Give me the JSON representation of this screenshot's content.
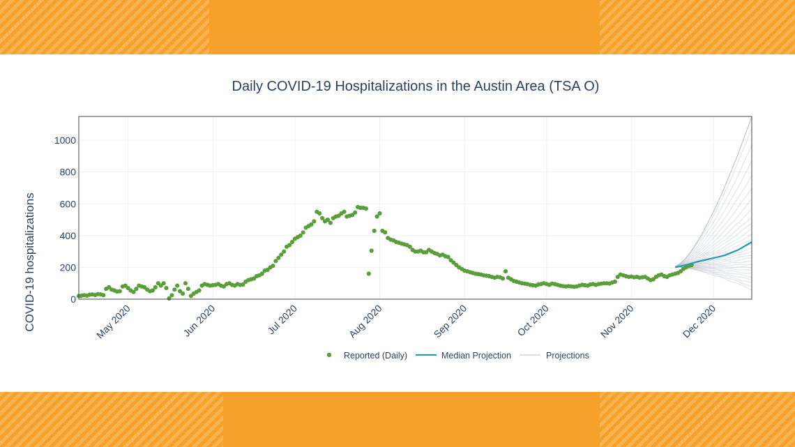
{
  "colors": {
    "band_orange": "#f6a12c",
    "band_orange_light": "#f8b24a",
    "reported": "#5a9e3c",
    "median": "#1a9eb0",
    "projection": "#a9adb6",
    "text": "#2a3f5f",
    "grid": "#eef0f3"
  },
  "chart_data": {
    "type": "scatter",
    "title": "Daily COVID-19 Hospitalizations in the Austin Area (TSA O)",
    "xlabel": "",
    "ylabel": "COVID-19 hospitalizations",
    "xlim": [
      "2020-04-13",
      "2020-12-15"
    ],
    "ylim": [
      0,
      1150
    ],
    "y_ticks": [
      0,
      200,
      400,
      600,
      800,
      1000
    ],
    "x_ticks": [
      {
        "date": "2020-05-01",
        "label": "May 2020"
      },
      {
        "date": "2020-06-01",
        "label": "Jun 2020"
      },
      {
        "date": "2020-07-01",
        "label": "Jul 2020"
      },
      {
        "date": "2020-08-01",
        "label": "Aug 2020"
      },
      {
        "date": "2020-09-01",
        "label": "Sep 2020"
      },
      {
        "date": "2020-10-01",
        "label": "Oct 2020"
      },
      {
        "date": "2020-11-01",
        "label": "Nov 2020"
      },
      {
        "date": "2020-12-01",
        "label": "Dec 2020"
      }
    ],
    "grid": true,
    "legend_position": "bottom",
    "series": [
      {
        "name": "Reported (Daily)",
        "kind": "markers",
        "start_date": "2020-04-13",
        "values": [
          20,
          22,
          25,
          22,
          28,
          30,
          26,
          32,
          30,
          25,
          65,
          75,
          60,
          55,
          48,
          50,
          80,
          85,
          70,
          55,
          45,
          65,
          85,
          80,
          75,
          60,
          50,
          55,
          75,
          100,
          85,
          100,
          70,
          5,
          25,
          60,
          85,
          50,
          35,
          100,
          65,
          20,
          35,
          45,
          55,
          85,
          95,
          90,
          85,
          88,
          90,
          95,
          85,
          80,
          95,
          100,
          90,
          85,
          95,
          90,
          92,
          110,
          120,
          125,
          130,
          145,
          150,
          160,
          180,
          185,
          200,
          210,
          240,
          260,
          280,
          300,
          330,
          340,
          360,
          380,
          390,
          400,
          420,
          450,
          460,
          470,
          490,
          550,
          540,
          510,
          490,
          500,
          480,
          510,
          520,
          525,
          540,
          550,
          520,
          525,
          530,
          545,
          580,
          575,
          575,
          570,
          160,
          305,
          430,
          520,
          540,
          430,
          420,
          385,
          375,
          370,
          360,
          355,
          350,
          345,
          340,
          330,
          310,
          300,
          300,
          305,
          295,
          295,
          310,
          300,
          290,
          285,
          275,
          280,
          270,
          265,
          245,
          230,
          215,
          200,
          190,
          180,
          175,
          170,
          165,
          160,
          158,
          155,
          150,
          148,
          145,
          140,
          135,
          140,
          138,
          130,
          175,
          135,
          125,
          115,
          110,
          105,
          100,
          98,
          95,
          90,
          88,
          85,
          92,
          95,
          100,
          95,
          90,
          98,
          95,
          90,
          85,
          82,
          80,
          82,
          80,
          78,
          80,
          85,
          90,
          88,
          85,
          92,
          95,
          90,
          95,
          98,
          100,
          100,
          98,
          105,
          110,
          140,
          155,
          150,
          145,
          140,
          142,
          138,
          140,
          135,
          138,
          140,
          130,
          120,
          125,
          140,
          150,
          155,
          145,
          140,
          150,
          155,
          160,
          165,
          175,
          190,
          200,
          210,
          215
        ]
      },
      {
        "name": "Median Projection",
        "kind": "line",
        "points": [
          [
            "2020-11-17",
            200
          ],
          [
            "2020-11-21",
            215
          ],
          [
            "2020-11-25",
            235
          ],
          [
            "2020-11-30",
            255
          ],
          [
            "2020-12-05",
            275
          ],
          [
            "2020-12-10",
            310
          ],
          [
            "2020-12-15",
            360
          ]
        ]
      },
      {
        "name": "Projections",
        "kind": "bundle",
        "start_date": "2020-11-17",
        "end_date": "2020-12-15",
        "start_value": 205,
        "end_values": [
          60,
          80,
          100,
          120,
          140,
          160,
          180,
          200,
          220,
          240,
          260,
          280,
          300,
          320,
          350,
          380,
          410,
          440,
          480,
          520,
          570,
          630,
          700,
          780,
          870,
          970,
          1080,
          1150,
          1150,
          1150
        ]
      }
    ]
  }
}
